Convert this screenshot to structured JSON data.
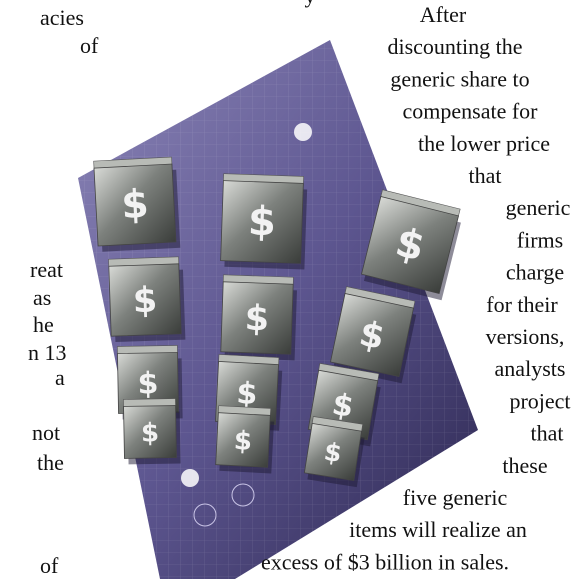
{
  "left_column": [
    "acies",
    "of",
    "reat",
    "as",
    "he",
    "n 13",
    "a",
    "not",
    "the",
    "of"
  ],
  "top_fragment": "y",
  "right_column": [
    "After",
    "discounting the",
    "generic share to",
    "compensate for",
    "the lower price",
    "that",
    "generic",
    "firms",
    "charge",
    "for their",
    "versions,",
    "analysts",
    "project",
    "that",
    "these",
    "five generic",
    "items will realize an",
    "excess of $3 billion in sales."
  ],
  "illustration": {
    "symbol": "$"
  }
}
